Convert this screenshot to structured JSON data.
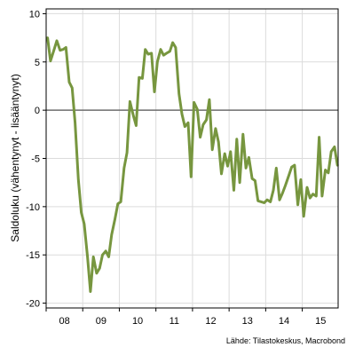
{
  "chart_data": {
    "type": "line",
    "title": "",
    "ylabel": "Saldoluku (vähentynyt - lisääntynyt)",
    "xlabel": "",
    "source": "Lähde: Tilastokeskus, Macrobond",
    "ylim": [
      -20.5,
      10.5
    ],
    "xlim": [
      2008.0,
      2015.98
    ],
    "yticks": [
      10,
      5,
      0,
      -5,
      -10,
      -15,
      -20
    ],
    "xticks": [
      {
        "label": "08",
        "x": 2008.5
      },
      {
        "label": "09",
        "x": 2009.5
      },
      {
        "label": "10",
        "x": 2010.5
      },
      {
        "label": "11",
        "x": 2011.5
      },
      {
        "label": "12",
        "x": 2012.5
      },
      {
        "label": "13",
        "x": 2013.5
      },
      {
        "label": "14",
        "x": 2014.5
      },
      {
        "label": "15",
        "x": 2015.5
      }
    ],
    "grid": true,
    "reference_line": 0,
    "series": [
      {
        "color": "#77963f",
        "x": [
          2008.04,
          2008.12,
          2008.21,
          2008.29,
          2008.38,
          2008.46,
          2008.54,
          2008.63,
          2008.71,
          2008.79,
          2008.88,
          2008.96,
          2009.04,
          2009.13,
          2009.21,
          2009.29,
          2009.38,
          2009.46,
          2009.54,
          2009.63,
          2009.71,
          2009.79,
          2009.88,
          2009.96,
          2010.04,
          2010.13,
          2010.21,
          2010.29,
          2010.38,
          2010.46,
          2010.54,
          2010.63,
          2010.71,
          2010.79,
          2010.88,
          2010.96,
          2011.04,
          2011.13,
          2011.21,
          2011.29,
          2011.38,
          2011.46,
          2011.54,
          2011.63,
          2011.71,
          2011.79,
          2011.88,
          2011.96,
          2012.04,
          2012.13,
          2012.21,
          2012.29,
          2012.38,
          2012.46,
          2012.54,
          2012.63,
          2012.71,
          2012.79,
          2012.88,
          2012.96,
          2013.04,
          2013.13,
          2013.21,
          2013.29,
          2013.38,
          2013.46,
          2013.54,
          2013.63,
          2013.71,
          2013.79,
          2013.88,
          2013.96,
          2014.04,
          2014.13,
          2014.21,
          2014.29,
          2014.38,
          2014.46,
          2014.54,
          2014.63,
          2014.71,
          2014.79,
          2014.88,
          2014.96,
          2015.04,
          2015.13,
          2015.21,
          2015.29,
          2015.38,
          2015.46,
          2015.54,
          2015.63,
          2015.71,
          2015.79,
          2015.88,
          2015.96
        ],
        "values": [
          7.5,
          5.1,
          6.2,
          7.2,
          6.2,
          6.3,
          6.5,
          2.9,
          2.3,
          -1.3,
          -7.2,
          -10.6,
          -11.8,
          -15.2,
          -18.8,
          -15.2,
          -16.9,
          -16.4,
          -15.0,
          -14.6,
          -15.2,
          -12.9,
          -11.3,
          -9.7,
          -9.5,
          -6.0,
          -4.4,
          0.9,
          -0.5,
          -1.6,
          3.4,
          3.3,
          6.3,
          5.8,
          5.9,
          1.9,
          5.0,
          6.3,
          5.7,
          5.9,
          6.1,
          7.0,
          6.5,
          1.7,
          -0.4,
          -1.7,
          -1.3,
          -6.9,
          0.8,
          0.1,
          -2.8,
          -1.5,
          -1.0,
          1.1,
          -4.1,
          -1.9,
          -3.3,
          -6.6,
          -4.5,
          -5.8,
          -4.3,
          -8.3,
          -3.0,
          -7.5,
          -2.5,
          -6.0,
          -4.9,
          -7.1,
          -7.3,
          -9.4,
          -9.5,
          -9.6,
          -9.3,
          -9.5,
          -8.3,
          -6.0,
          -9.3,
          -8.6,
          -7.8,
          -6.8,
          -5.9,
          -5.7,
          -9.8,
          -7.2,
          -11.0,
          -8.0,
          -9.1,
          -8.7,
          -8.9,
          -2.8,
          -8.9,
          -6.2,
          -6.5,
          -4.3,
          -3.8,
          -5.7
        ]
      }
    ]
  }
}
